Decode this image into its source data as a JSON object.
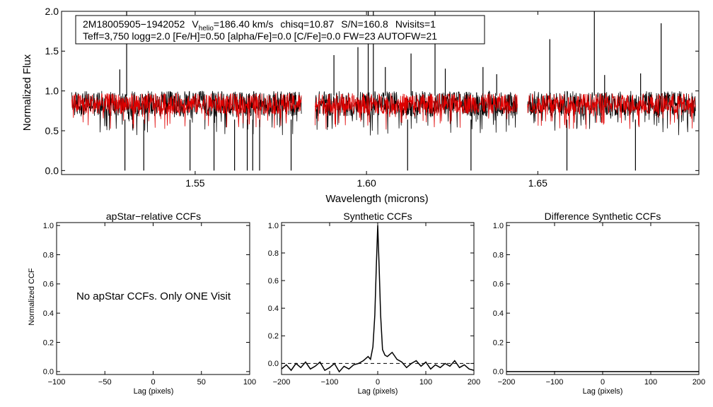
{
  "colors": {
    "data": "#000000",
    "model": "#e00000",
    "axis": "#000000",
    "background": "#ffffff"
  },
  "chart_data": [
    {
      "type": "line",
      "id": "spectrum",
      "title": "",
      "xlabel": "Wavelength (microns)",
      "ylabel": "Normalized Flux",
      "xlim": [
        1.511,
        1.697
      ],
      "ylim": [
        -0.05,
        2.0
      ],
      "x_ticks": [
        1.55,
        1.6,
        1.65
      ],
      "x_tick_labels": [
        "1.55",
        "1.60",
        "1.65"
      ],
      "y_ticks": [
        0.0,
        0.5,
        1.0,
        1.5,
        2.0
      ],
      "y_tick_labels": [
        "0.0",
        "0.5",
        "1.0",
        "1.5",
        "2.0"
      ],
      "chip_ranges": [
        [
          1.514,
          1.581
        ],
        [
          1.585,
          1.644
        ],
        [
          1.647,
          1.696
        ]
      ],
      "info": {
        "star_id": "2M18005905−1942052",
        "vhelio_prefix": "V",
        "vhelio_sub": "helio",
        "vhelio_value": "=186.40 km/s",
        "chisq": "chisq=10.87",
        "snr": "S/N=160.8",
        "nvisits": "Nvisits=1",
        "params": "Teff=3,750 logg=2.0 [Fe/H]=0.50 [alpha/Fe]=0.0 [C/Fe]=0.0 FW=23 AUTOFW=21"
      },
      "series": [
        {
          "name": "Observed spectrum",
          "color": "#000000",
          "continuum": 0.84,
          "scatter": 0.16
        },
        {
          "name": "Synthetic model",
          "color": "#e00000",
          "continuum": 0.84,
          "scatter": 0.13
        }
      ],
      "emission_spikes": [
        {
          "x": 1.528,
          "y": 1.27
        },
        {
          "x": 1.53,
          "y": 2.0
        },
        {
          "x": 1.6005,
          "y": 2.0
        },
        {
          "x": 1.602,
          "y": 2.0
        },
        {
          "x": 1.5905,
          "y": 1.45
        },
        {
          "x": 1.5975,
          "y": 1.55
        },
        {
          "x": 1.6055,
          "y": 1.3
        },
        {
          "x": 1.613,
          "y": 1.47
        },
        {
          "x": 1.62,
          "y": 2.0
        },
        {
          "x": 1.623,
          "y": 1.28
        },
        {
          "x": 1.634,
          "y": 1.3
        },
        {
          "x": 1.638,
          "y": 1.21
        },
        {
          "x": 1.6535,
          "y": 1.65
        },
        {
          "x": 1.6665,
          "y": 2.0
        },
        {
          "x": 1.6695,
          "y": 1.2
        },
        {
          "x": 1.68,
          "y": 1.22
        },
        {
          "x": 1.686,
          "y": 1.85
        }
      ],
      "absorption_lines": [
        {
          "x": 1.5295,
          "y": 0.0
        },
        {
          "x": 1.535,
          "y": 0.0
        },
        {
          "x": 1.5485,
          "y": 0.0
        },
        {
          "x": 1.5555,
          "y": 0.0
        },
        {
          "x": 1.5615,
          "y": 0.0
        },
        {
          "x": 1.5652,
          "y": 0.0
        },
        {
          "x": 1.5668,
          "y": 0.0
        },
        {
          "x": 1.5688,
          "y": 0.0
        },
        {
          "x": 1.578,
          "y": 0.0
        },
        {
          "x": 1.612,
          "y": 0.0
        },
        {
          "x": 1.6305,
          "y": 0.0
        },
        {
          "x": 1.6585,
          "y": 0.0
        },
        {
          "x": 1.6785,
          "y": 0.0
        }
      ]
    },
    {
      "type": "line",
      "id": "apstar",
      "title": "apStar−relative CCFs",
      "xlabel": "Lag (pixels)",
      "ylabel": "Normalized CCF",
      "xlim": [
        -100,
        100
      ],
      "ylim": [
        -0.02,
        1.02
      ],
      "x_ticks": [
        -100,
        -50,
        0,
        50,
        100
      ],
      "x_tick_labels": [
        "−100",
        "−50",
        "0",
        "50",
        "100"
      ],
      "y_ticks": [
        0.0,
        0.2,
        0.4,
        0.6,
        0.8,
        1.0
      ],
      "y_tick_labels": [
        "0.0",
        "0.2",
        "0.4",
        "0.6",
        "0.8",
        "1.0"
      ],
      "annotation": "No apStar CCFs.  Only ONE Visit",
      "series": []
    },
    {
      "type": "line",
      "id": "synthetic",
      "title": "Synthetic CCFs",
      "xlabel": "Lag (pixels)",
      "ylabel": "",
      "xlim": [
        -200,
        200
      ],
      "ylim": [
        -0.08,
        1.02
      ],
      "x_ticks": [
        -200,
        -100,
        0,
        100,
        200
      ],
      "x_tick_labels": [
        "−200",
        "−100",
        "0",
        "100",
        "200"
      ],
      "y_ticks": [
        0.0,
        0.2,
        0.4,
        0.6,
        0.8,
        1.0
      ],
      "y_tick_labels": [
        "0.0",
        "0.2",
        "0.4",
        "0.6",
        "0.8",
        "1.0"
      ],
      "series": [
        {
          "name": "CCF",
          "x": [
            -200,
            -190,
            -180,
            -170,
            -160,
            -150,
            -140,
            -130,
            -120,
            -110,
            -100,
            -90,
            -80,
            -70,
            -60,
            -50,
            -40,
            -30,
            -20,
            -15,
            -10,
            -6,
            -3,
            0,
            3,
            6,
            10,
            15,
            20,
            30,
            40,
            50,
            60,
            70,
            80,
            90,
            100,
            110,
            120,
            130,
            140,
            150,
            160,
            170,
            180,
            190,
            200
          ],
          "values": [
            -0.04,
            -0.01,
            -0.05,
            0.0,
            -0.03,
            0.01,
            -0.04,
            -0.02,
            0.01,
            -0.05,
            -0.03,
            0.0,
            -0.06,
            -0.02,
            -0.04,
            -0.01,
            0.0,
            0.02,
            0.05,
            0.03,
            0.12,
            0.35,
            0.7,
            1.0,
            0.7,
            0.35,
            0.1,
            0.06,
            0.05,
            0.08,
            0.03,
            0.01,
            -0.03,
            0.0,
            0.02,
            -0.02,
            0.01,
            -0.04,
            -0.01,
            -0.03,
            0.0,
            -0.02,
            0.02,
            -0.03,
            -0.01,
            -0.04,
            -0.05
          ]
        },
        {
          "name": "zero line",
          "x": [
            -200,
            200
          ],
          "values": [
            0.0,
            0.0
          ],
          "style": "dashed"
        }
      ]
    },
    {
      "type": "line",
      "id": "difference",
      "title": "Difference Synthetic CCFs",
      "xlabel": "Lag (pixels)",
      "ylabel": "",
      "xlim": [
        -200,
        200
      ],
      "ylim": [
        -0.02,
        1.02
      ],
      "x_ticks": [
        -200,
        -100,
        0,
        100,
        200
      ],
      "x_tick_labels": [
        "−200",
        "−100",
        "0",
        "100",
        "200"
      ],
      "y_ticks": [
        0.0,
        0.2,
        0.4,
        0.6,
        0.8,
        1.0
      ],
      "y_tick_labels": [
        "0.0",
        "0.2",
        "0.4",
        "0.6",
        "0.8",
        "1.0"
      ],
      "series": [
        {
          "name": "difference CCF",
          "x": [
            -200,
            200
          ],
          "values": [
            0.0,
            0.0
          ]
        }
      ]
    }
  ]
}
